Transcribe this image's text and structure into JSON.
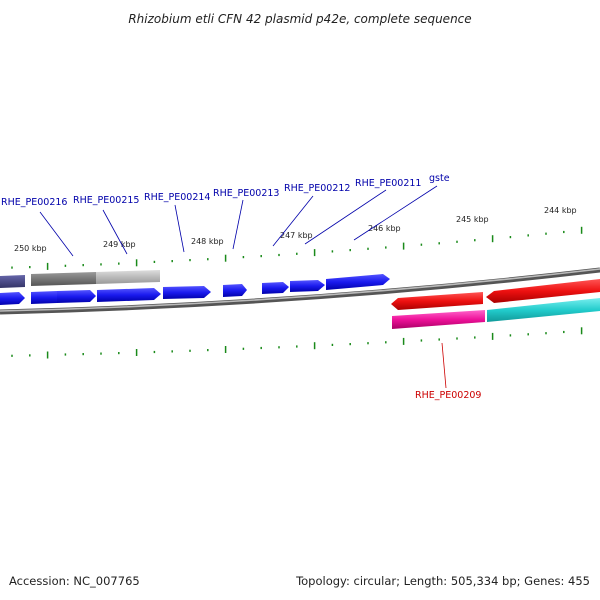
{
  "title": "Rhizobium etli CFN 42 plasmid p42e, complete sequence",
  "footer": {
    "accession": "Accession: NC_007765",
    "topology": "Topology: circular; Length: 505,334 bp; Genes: 455"
  },
  "ruler_labels": [
    "250 kbp",
    "249 kbp",
    "248 kbp",
    "247 kbp",
    "246 kbp",
    "245 kbp",
    "244 kbp"
  ],
  "gene_labels": [
    {
      "name": "RHE_PE00216",
      "color": "#0000aa"
    },
    {
      "name": "RHE_PE00215",
      "color": "#0000aa"
    },
    {
      "name": "RHE_PE00214",
      "color": "#0000aa"
    },
    {
      "name": "RHE_PE00213",
      "color": "#0000aa"
    },
    {
      "name": "RHE_PE00212",
      "color": "#0000aa"
    },
    {
      "name": "RHE_PE00211",
      "color": "#0000aa"
    },
    {
      "name": "gste",
      "color": "#0000aa"
    },
    {
      "name": "RHE_PE00209",
      "color": "#cc0000"
    }
  ],
  "colors": {
    "backbone": "#888888",
    "forward_gene": "#1a1aee",
    "reverse_gene": "#ee1111",
    "pink_feature": "#ee1199",
    "cyan_feature": "#22cccc",
    "grey_feature": "#777777",
    "light_grey_feature": "#bbbbbb",
    "tick": "#1a8a1a"
  }
}
